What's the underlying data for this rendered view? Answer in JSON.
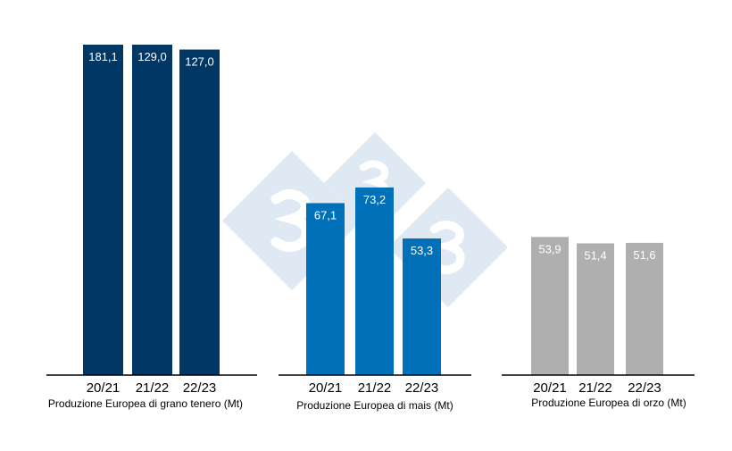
{
  "chart_data": [
    {
      "type": "bar",
      "title": "Produzione Europea di grano tenero (Mt)",
      "categories": [
        "20/21",
        "21/22",
        "22/23"
      ],
      "values": [
        181.1,
        129.0,
        127.0
      ],
      "labels": [
        "181,1",
        "129,0",
        "127,0"
      ],
      "color": "#003764",
      "grid": false
    },
    {
      "type": "bar",
      "title": "Produzione Europea di mais (Mt)",
      "categories": [
        "20/21",
        "21/22",
        "22/23"
      ],
      "values": [
        67.1,
        73.2,
        53.3
      ],
      "labels": [
        "67,1",
        "73,2",
        "53,3"
      ],
      "color": "#0070b8",
      "grid": false
    },
    {
      "type": "bar",
      "title": "Produzione Europea di orzo (Mt)",
      "categories": [
        "20/21",
        "21/22",
        "22/23"
      ],
      "values": [
        53.9,
        51.4,
        51.6
      ],
      "labels": [
        "53,9",
        "51,4",
        "51,6"
      ],
      "color": "#afafaf",
      "grid": false
    }
  ],
  "watermark": {
    "text": "3",
    "color": "#dfe9f3"
  }
}
